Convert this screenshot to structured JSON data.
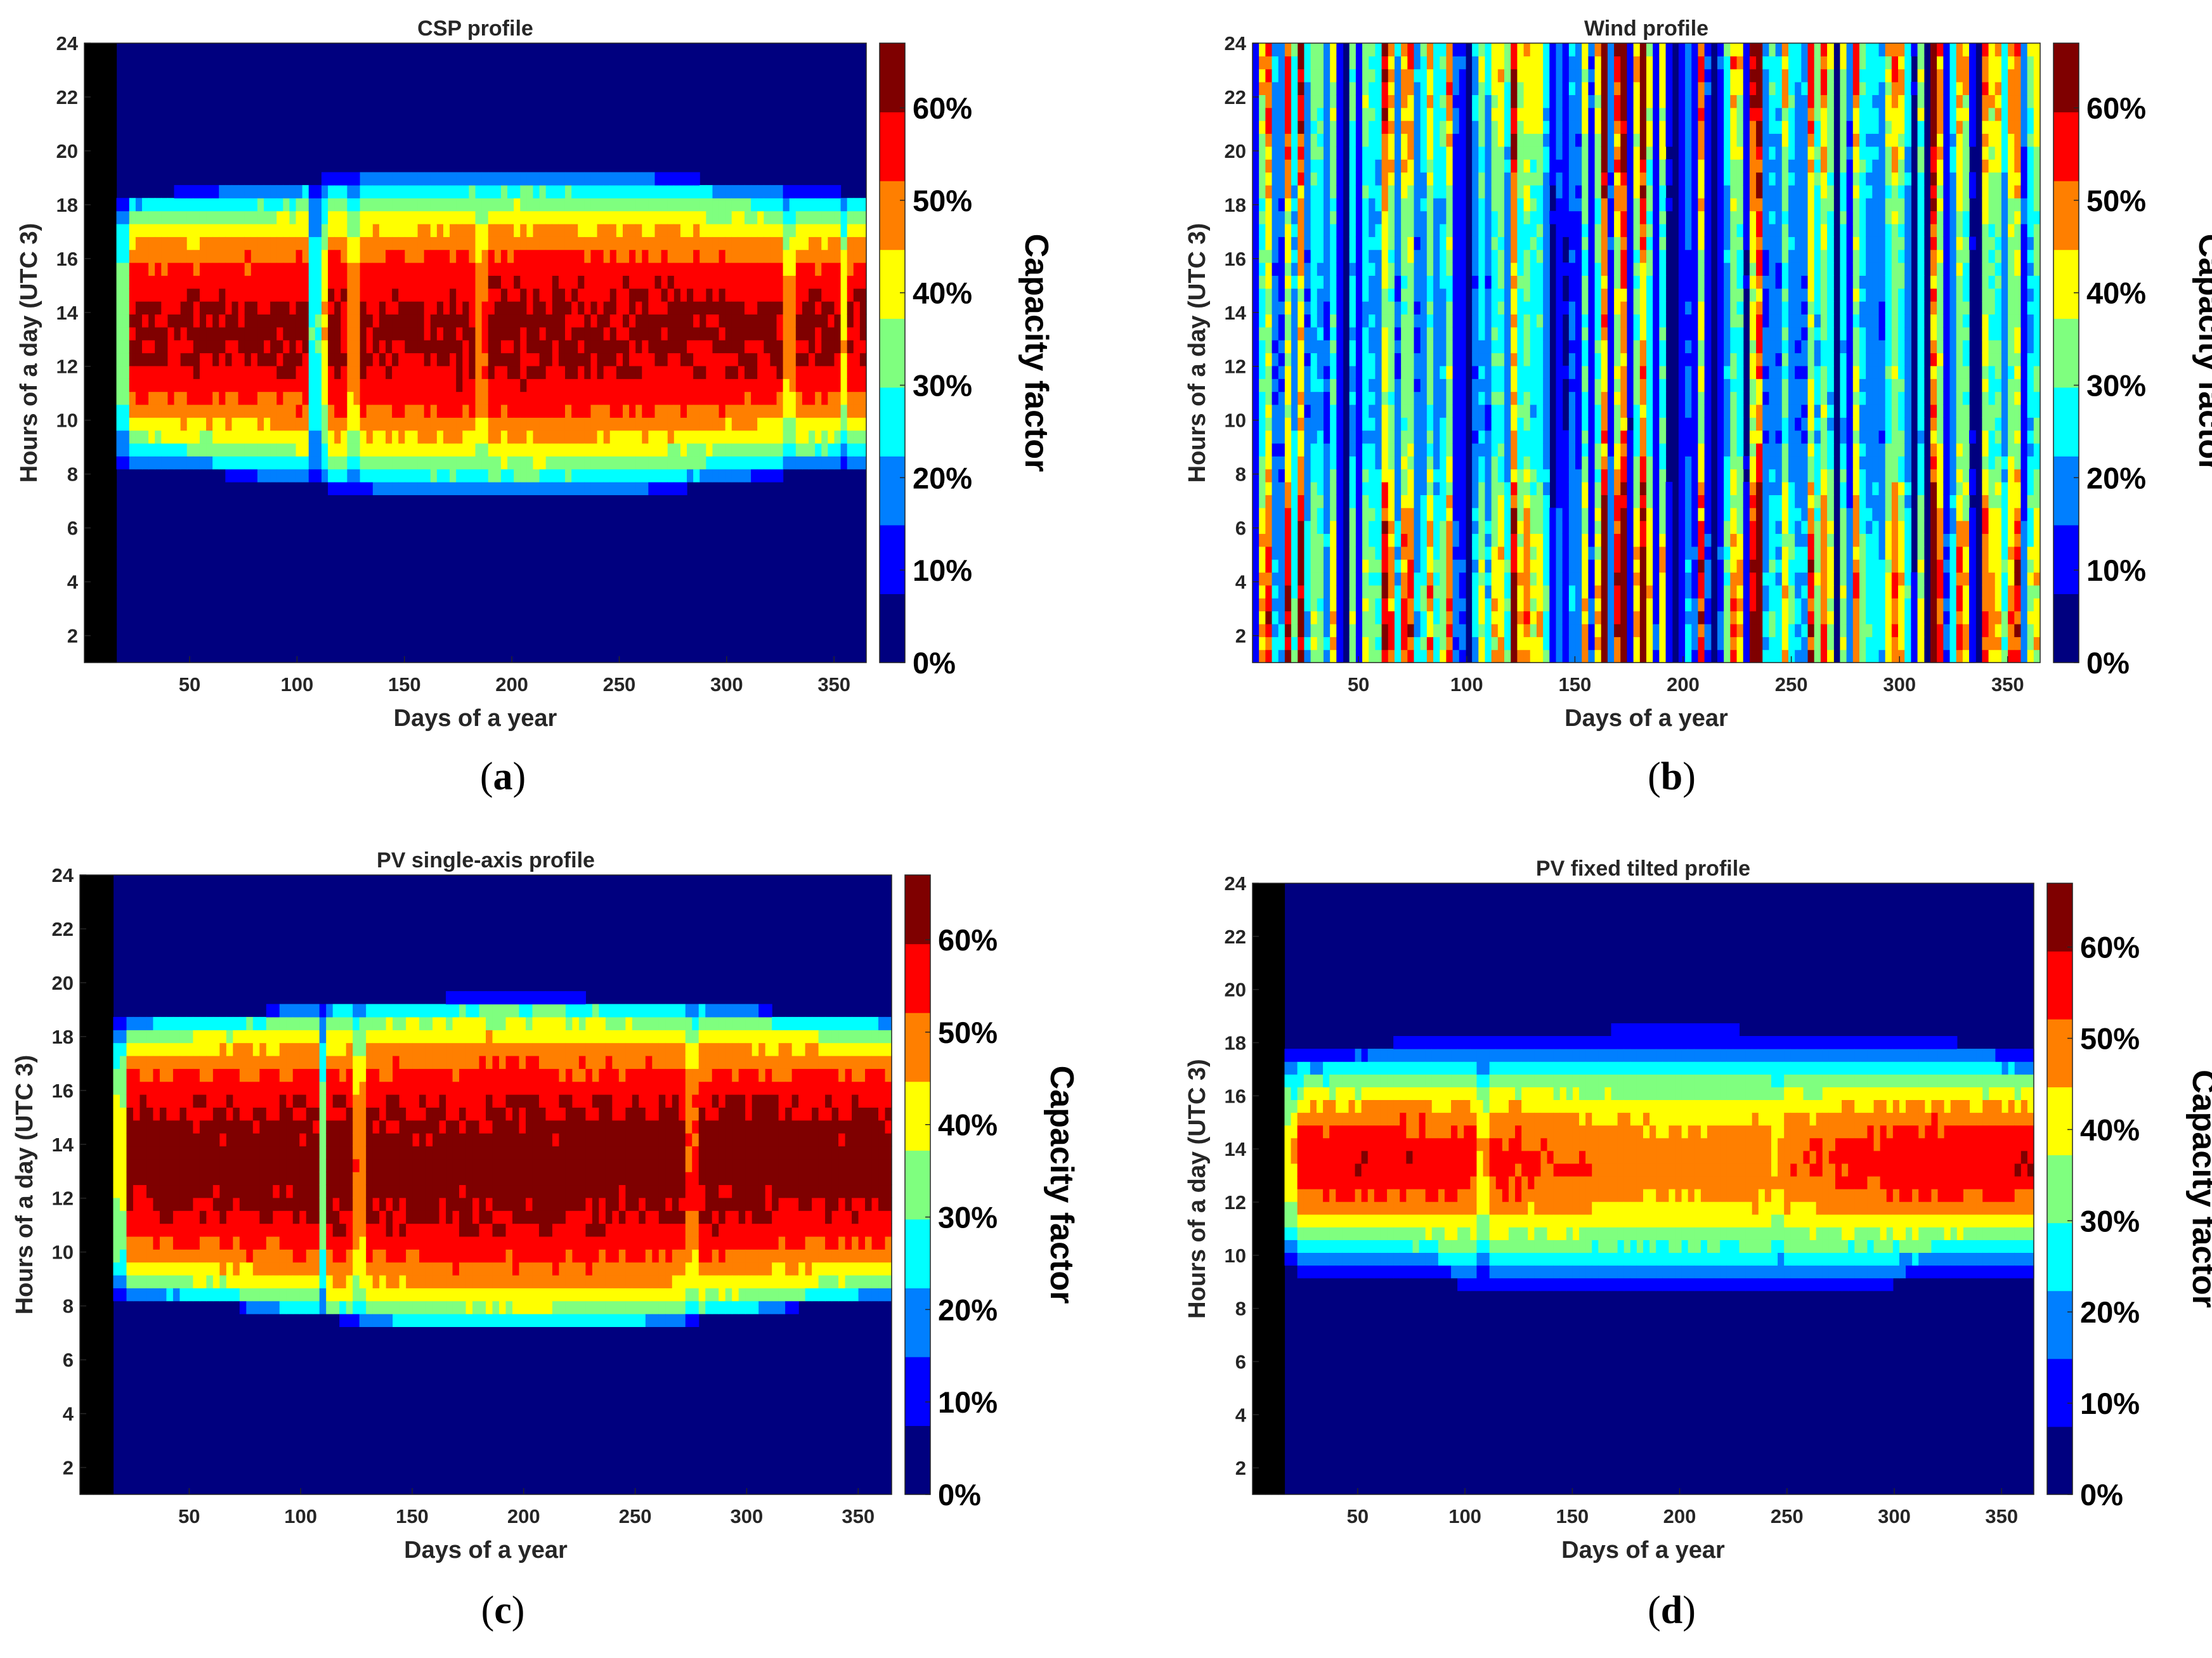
{
  "colors": {
    "jet": [
      "#00007f",
      "#0000ff",
      "#007fff",
      "#00ffff",
      "#7fff7f",
      "#ffff00",
      "#ff7f00",
      "#ff0000",
      "#7f0000"
    ],
    "text": "#262626"
  },
  "chart_data": [
    {
      "type": "heatmap",
      "id": "a",
      "title": "CSP profile",
      "caption_letter": "a",
      "xlabel": "Days of a year",
      "ylabel": "Hours of a day (UTC 3)",
      "x_ticks": [
        "50",
        "100",
        "150",
        "200",
        "250",
        "300",
        "350"
      ],
      "y_ticks": [
        "2",
        "4",
        "6",
        "8",
        "10",
        "12",
        "14",
        "16",
        "18",
        "20",
        "22",
        "24"
      ],
      "xlim": [
        1,
        365
      ],
      "ylim": [
        1,
        24
      ],
      "colorbar": {
        "label": "Capacity factor",
        "ticks": [
          "0%",
          "10%",
          "20%",
          "30%",
          "40%",
          "50%",
          "60%"
        ],
        "range": [
          0,
          0.67
        ]
      },
      "profile": {
        "kind": "solar",
        "peak_day": 0.66,
        "sunrise_day": 8.3,
        "sunrise_summer": 7.0,
        "sunset_day": 18.4,
        "sunset_summer": 19.4,
        "noon": 12.9,
        "shape": 0.55,
        "dips": [
          [
            18,
            0.55
          ],
          [
            108,
            0.45
          ],
          [
            113,
            0.7
          ],
          [
            127,
            0.8
          ],
          [
            185,
            0.85
          ],
          [
            330,
            0.8
          ],
          [
            355,
            0.7
          ]
        ]
      }
    },
    {
      "type": "heatmap",
      "id": "b",
      "title": "Wind profile",
      "caption_letter": "b",
      "xlabel": "Days of a year",
      "ylabel": "Hours of a day (UTC 3)",
      "x_ticks": [
        "50",
        "100",
        "150",
        "200",
        "250",
        "300",
        "350"
      ],
      "y_ticks": [
        "2",
        "4",
        "6",
        "8",
        "10",
        "12",
        "14",
        "16",
        "18",
        "20",
        "22",
        "24"
      ],
      "xlim": [
        1,
        365
      ],
      "ylim": [
        1,
        24
      ],
      "colorbar": {
        "label": "Capacity factor",
        "ticks": [
          "0%",
          "10%",
          "20%",
          "30%",
          "40%",
          "50%",
          "60%"
        ],
        "range": [
          0,
          0.67
        ]
      },
      "profile": {
        "kind": "wind",
        "mean": 0.24,
        "spread": 0.3
      }
    },
    {
      "type": "heatmap",
      "id": "c",
      "title": "PV single-axis profile",
      "caption_letter": "c",
      "xlabel": "Days of a year",
      "ylabel": "Hours of a day (UTC 3)",
      "x_ticks": [
        "50",
        "100",
        "150",
        "200",
        "250",
        "300",
        "350"
      ],
      "y_ticks": [
        "2",
        "4",
        "6",
        "8",
        "10",
        "12",
        "14",
        "16",
        "18",
        "20",
        "22",
        "24"
      ],
      "xlim": [
        1,
        365
      ],
      "ylim": [
        1,
        24
      ],
      "colorbar": {
        "label": "Capacity factor",
        "ticks": [
          "0%",
          "10%",
          "20%",
          "30%",
          "40%",
          "50%",
          "60%"
        ],
        "range": [
          0,
          0.67
        ]
      },
      "profile": {
        "kind": "solar",
        "peak_day": 0.68,
        "sunrise_day": 8.4,
        "sunrise_summer": 7.0,
        "sunset_day": 18.6,
        "sunset_summer": 19.5,
        "noon": 13.0,
        "shape": 0.4,
        "dips": [
          [
            18,
            0.6
          ],
          [
            110,
            0.5
          ],
          [
            127,
            0.8
          ],
          [
            275,
            0.85
          ]
        ]
      }
    },
    {
      "type": "heatmap",
      "id": "d",
      "title": "PV fixed tilted profile",
      "caption_letter": "d",
      "xlabel": "Days of a year",
      "ylabel": "Hours of a day (UTC 3)",
      "x_ticks": [
        "50",
        "100",
        "150",
        "200",
        "250",
        "300",
        "350"
      ],
      "y_ticks": [
        "2",
        "4",
        "6",
        "8",
        "10",
        "12",
        "14",
        "16",
        "18",
        "20",
        "22",
        "24"
      ],
      "xlim": [
        1,
        365
      ],
      "ylim": [
        1,
        24
      ],
      "colorbar": {
        "label": "Capacity factor",
        "ticks": [
          "0%",
          "10%",
          "20%",
          "30%",
          "40%",
          "50%",
          "60%"
        ],
        "range": [
          0,
          0.67
        ]
      },
      "profile": {
        "kind": "solar",
        "peak_day": 0.62,
        "summer_factor": 0.82,
        "sunrise_day": 9.2,
        "sunrise_summer": 8.2,
        "sunset_day": 18.0,
        "sunset_summer": 18.8,
        "noon": 13.3,
        "shape": 1.0,
        "dips": [
          [
            18,
            0.75
          ],
          [
            108,
            0.8
          ],
          [
            245,
            0.9
          ]
        ]
      }
    }
  ]
}
